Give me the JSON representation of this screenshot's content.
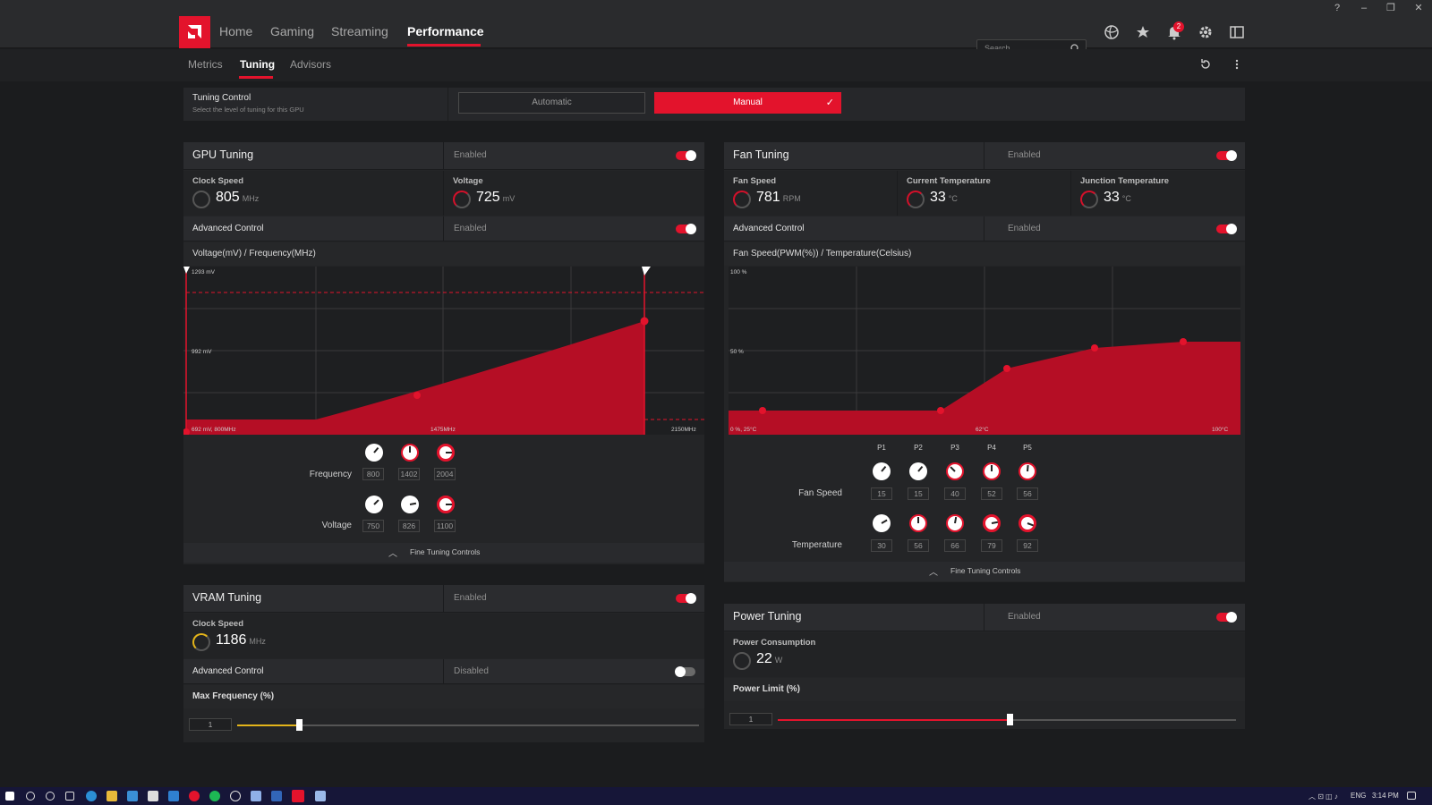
{
  "nav": {
    "items": [
      "Home",
      "Gaming",
      "Streaming",
      "Performance"
    ],
    "search_placeholder": "Search",
    "notification_count": "2"
  },
  "subnav": {
    "items": [
      "Metrics",
      "Tuning",
      "Advisors"
    ]
  },
  "tuning_control": {
    "label": "Tuning Control",
    "sublabel": "Select the level of tuning for this GPU",
    "automatic": "Automatic",
    "manual": "Manual"
  },
  "gpu": {
    "title": "GPU Tuning",
    "enabled": "Enabled",
    "clock_label": "Clock Speed",
    "clock_value": "805",
    "clock_unit": "MHz",
    "voltage_label": "Voltage",
    "voltage_value": "725",
    "voltage_unit": "mV",
    "advanced": "Advanced Control",
    "advanced_state": "Enabled",
    "chart_title": "Voltage(mV) / Frequency(MHz)",
    "chart_labels": {
      "top": "1293 mV",
      "mid": "992 mV",
      "origin": "692 mV, 800MHz",
      "xmid": "1475MHz",
      "xmax": "2150MHz"
    },
    "frequency_label": "Frequency",
    "frequency_values": [
      "800",
      "1402",
      "2004"
    ],
    "voltage_row_label": "Voltage",
    "voltage_values": [
      "750",
      "826",
      "1100"
    ],
    "fine": "Fine Tuning Controls"
  },
  "fan": {
    "title": "Fan Tuning",
    "enabled": "Enabled",
    "speed_label": "Fan Speed",
    "speed_value": "781",
    "speed_unit": "RPM",
    "cur_label": "Current Temperature",
    "cur_value": "33",
    "cur_unit": "°C",
    "junc_label": "Junction Temperature",
    "junc_value": "33",
    "junc_unit": "°C",
    "advanced": "Advanced Control",
    "advanced_state": "Enabled",
    "chart_title": "Fan Speed(PWM(%)) / Temperature(Celsius)",
    "chart_labels": {
      "top": "100 %",
      "mid": "50 %",
      "origin": "0 %, 25°C",
      "xmid": "62°C",
      "xmax": "100°C"
    },
    "points": [
      "P1",
      "P2",
      "P3",
      "P4",
      "P5"
    ],
    "fan_label": "Fan Speed",
    "fan_values": [
      "15",
      "15",
      "40",
      "52",
      "56"
    ],
    "temp_label": "Temperature",
    "temp_values": [
      "30",
      "56",
      "66",
      "79",
      "92"
    ],
    "fine": "Fine Tuning Controls"
  },
  "vram": {
    "title": "VRAM Tuning",
    "enabled": "Enabled",
    "clock_label": "Clock Speed",
    "clock_value": "1186",
    "clock_unit": "MHz",
    "advanced": "Advanced Control",
    "advanced_state": "Disabled",
    "maxfreq_label": "Max Frequency (%)",
    "maxfreq_value": "1"
  },
  "power": {
    "title": "Power Tuning",
    "enabled": "Enabled",
    "cons_label": "Power Consumption",
    "cons_value": "22",
    "cons_unit": "W",
    "limit_label": "Power Limit (%)",
    "limit_value": "1"
  },
  "taskbar": {
    "lang": "ENG",
    "time": "3:14 PM"
  },
  "colors": {
    "accent": "#e3132c",
    "vram_accent": "#e3b41a"
  }
}
